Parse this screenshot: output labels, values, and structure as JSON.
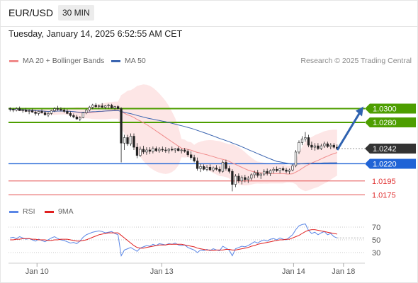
{
  "header": {
    "symbol": "EUR/USD",
    "timeframe": "30 MIN",
    "datetime": "Tuesday, January 14, 2025 6:52:55 AM CET"
  },
  "legend": {
    "ma20_label": "MA 20 + Bollinger Bands",
    "ma20_color": "#f08a8a",
    "ma50_label": "MA 50",
    "ma50_color": "#3a64b0",
    "credit": "Research © 2025 Trading Central"
  },
  "rsi_legend": {
    "rsi_label": "RSI",
    "rsi_color": "#5a86e6",
    "ma_label": "9MA",
    "ma_color": "#e02020"
  },
  "chart_data": [
    {
      "type": "candlestick",
      "title": "EUR/USD",
      "timeframe": "30 MIN",
      "ylim": [
        1.0165,
        1.0355
      ],
      "x_ticks": [
        {
          "label": "Jan 10",
          "t": 0.08
        },
        {
          "label": "Jan 13",
          "t": 0.43
        },
        {
          "label": "Jan 14",
          "t": 0.8
        },
        {
          "label": "Jan 18",
          "t": 0.94
        }
      ],
      "levels": [
        {
          "value": 1.03,
          "label": "1.0300",
          "kind": "resistance",
          "color": "#4d9e00"
        },
        {
          "value": 1.028,
          "label": "1.0280",
          "kind": "resistance",
          "color": "#4d9e00"
        },
        {
          "value": 1.0242,
          "label": "1.0242",
          "kind": "last",
          "color": "#333333"
        },
        {
          "value": 1.022,
          "label": "1.0220",
          "kind": "pivot",
          "color": "#1f63d6"
        },
        {
          "value": 1.0195,
          "label": "1.0195",
          "kind": "support",
          "color": "#e03030"
        },
        {
          "value": 1.0175,
          "label": "1.0175",
          "kind": "support",
          "color": "#e03030"
        }
      ],
      "forecast_arrow": {
        "from_value": 1.0242,
        "to_value": 1.03,
        "color": "#2f62b0"
      },
      "candles": [
        [
          1.03,
          1.0302,
          1.0296,
          1.0299
        ],
        [
          1.0299,
          1.0301,
          1.0295,
          1.0298
        ],
        [
          1.0298,
          1.0302,
          1.0296,
          1.03
        ],
        [
          1.03,
          1.0303,
          1.0298,
          1.0297
        ],
        [
          1.0297,
          1.03,
          1.0294,
          1.0298
        ],
        [
          1.0298,
          1.0301,
          1.0295,
          1.0296
        ],
        [
          1.0296,
          1.0299,
          1.0292,
          1.0297
        ],
        [
          1.0297,
          1.03,
          1.0294,
          1.0295
        ],
        [
          1.0295,
          1.0298,
          1.029,
          1.0293
        ],
        [
          1.0293,
          1.0297,
          1.029,
          1.0296
        ],
        [
          1.0296,
          1.0299,
          1.0293,
          1.0294
        ],
        [
          1.0294,
          1.0297,
          1.029,
          1.0291
        ],
        [
          1.0291,
          1.0295,
          1.0288,
          1.0293
        ],
        [
          1.0293,
          1.0298,
          1.0291,
          1.0297
        ],
        [
          1.0297,
          1.0302,
          1.0295,
          1.03
        ],
        [
          1.03,
          1.0304,
          1.0297,
          1.0299
        ],
        [
          1.0299,
          1.0302,
          1.0296,
          1.0298
        ],
        [
          1.0298,
          1.0301,
          1.0294,
          1.0296
        ],
        [
          1.0296,
          1.0299,
          1.0292,
          1.0293
        ],
        [
          1.0293,
          1.0296,
          1.0288,
          1.029
        ],
        [
          1.029,
          1.0293,
          1.0286,
          1.0288
        ],
        [
          1.0288,
          1.0291,
          1.0284,
          1.0285
        ],
        [
          1.0285,
          1.0289,
          1.0282,
          1.0287
        ],
        [
          1.0287,
          1.0295,
          1.0286,
          1.0294
        ],
        [
          1.0294,
          1.03,
          1.0292,
          1.0298
        ],
        [
          1.0298,
          1.0304,
          1.0296,
          1.0302
        ],
        [
          1.0302,
          1.0307,
          1.0299,
          1.0305
        ],
        [
          1.0305,
          1.0308,
          1.0301,
          1.0303
        ],
        [
          1.0303,
          1.0306,
          1.03,
          1.0304
        ],
        [
          1.0304,
          1.0308,
          1.0301,
          1.0302
        ],
        [
          1.0302,
          1.0305,
          1.0299,
          1.0304
        ],
        [
          1.0304,
          1.0307,
          1.03,
          1.0305
        ],
        [
          1.0305,
          1.0307,
          1.03,
          1.0301
        ],
        [
          1.0301,
          1.0304,
          1.0298,
          1.0303
        ],
        [
          1.0303,
          1.0305,
          1.0299,
          1.03
        ],
        [
          1.03,
          1.0302,
          1.0222,
          1.025
        ],
        [
          1.025,
          1.0262,
          1.024,
          1.0258
        ],
        [
          1.0258,
          1.0262,
          1.0246,
          1.0249
        ],
        [
          1.0249,
          1.0264,
          1.0246,
          1.026
        ],
        [
          1.026,
          1.0264,
          1.024,
          1.0244
        ],
        [
          1.0244,
          1.025,
          1.0228,
          1.0232
        ],
        [
          1.0232,
          1.0245,
          1.023,
          1.0241
        ],
        [
          1.0241,
          1.0246,
          1.0234,
          1.0237
        ],
        [
          1.0237,
          1.0244,
          1.0233,
          1.024
        ],
        [
          1.024,
          1.0244,
          1.0234,
          1.0238
        ],
        [
          1.0238,
          1.0245,
          1.0235,
          1.0242
        ],
        [
          1.0242,
          1.0245,
          1.0237,
          1.0239
        ],
        [
          1.0239,
          1.0244,
          1.0236,
          1.0241
        ],
        [
          1.0241,
          1.0245,
          1.0237,
          1.024
        ],
        [
          1.024,
          1.0244,
          1.0236,
          1.0239
        ],
        [
          1.0239,
          1.0243,
          1.0235,
          1.0241
        ],
        [
          1.0241,
          1.0245,
          1.0238,
          1.024
        ],
        [
          1.024,
          1.0243,
          1.0236,
          1.0242
        ],
        [
          1.0242,
          1.0245,
          1.0238,
          1.0239
        ],
        [
          1.0239,
          1.0242,
          1.0235,
          1.024
        ],
        [
          1.024,
          1.0243,
          1.0236,
          1.0238
        ],
        [
          1.0238,
          1.0241,
          1.023,
          1.0233
        ],
        [
          1.0233,
          1.0238,
          1.0226,
          1.0229
        ],
        [
          1.0229,
          1.0233,
          1.0222,
          1.0224
        ],
        [
          1.0224,
          1.0229,
          1.021,
          1.0213
        ],
        [
          1.0213,
          1.022,
          1.0208,
          1.0216
        ],
        [
          1.0216,
          1.0219,
          1.021,
          1.0212
        ],
        [
          1.0212,
          1.0218,
          1.0209,
          1.0215
        ],
        [
          1.0215,
          1.0219,
          1.021,
          1.0211
        ],
        [
          1.0211,
          1.0216,
          1.0208,
          1.0214
        ],
        [
          1.0214,
          1.0218,
          1.021,
          1.0212
        ],
        [
          1.0212,
          1.0216,
          1.0206,
          1.0209
        ],
        [
          1.0209,
          1.0225,
          1.0207,
          1.0222
        ],
        [
          1.0222,
          1.0226,
          1.021,
          1.0213
        ],
        [
          1.0213,
          1.0217,
          1.0206,
          1.0209
        ],
        [
          1.0209,
          1.0212,
          1.018,
          1.019
        ],
        [
          1.019,
          1.0205,
          1.0186,
          1.0202
        ],
        [
          1.0202,
          1.0206,
          1.0192,
          1.0195
        ],
        [
          1.0195,
          1.0203,
          1.019,
          1.02
        ],
        [
          1.02,
          1.0204,
          1.0193,
          1.0197
        ],
        [
          1.0197,
          1.0202,
          1.0192,
          1.0199
        ],
        [
          1.0199,
          1.0206,
          1.0196,
          1.0204
        ],
        [
          1.0204,
          1.021,
          1.0199,
          1.0207
        ],
        [
          1.0207,
          1.0211,
          1.02,
          1.0203
        ],
        [
          1.0203,
          1.0207,
          1.0198,
          1.0205
        ],
        [
          1.0205,
          1.0212,
          1.0202,
          1.0209
        ],
        [
          1.0209,
          1.0213,
          1.0203,
          1.0206
        ],
        [
          1.0206,
          1.0212,
          1.0202,
          1.021
        ],
        [
          1.021,
          1.0215,
          1.0206,
          1.0212
        ],
        [
          1.0212,
          1.0216,
          1.0208,
          1.021
        ],
        [
          1.021,
          1.0214,
          1.0206,
          1.0213
        ],
        [
          1.0213,
          1.0216,
          1.0209,
          1.0211
        ],
        [
          1.0211,
          1.0214,
          1.0206,
          1.0209
        ],
        [
          1.0209,
          1.0213,
          1.0205,
          1.0211
        ],
        [
          1.0211,
          1.0219,
          1.0209,
          1.0217
        ],
        [
          1.0217,
          1.024,
          1.0215,
          1.0237
        ],
        [
          1.0237,
          1.0254,
          1.0234,
          1.0251
        ],
        [
          1.0251,
          1.026,
          1.0247,
          1.0256
        ],
        [
          1.0256,
          1.0266,
          1.0252,
          1.0258
        ],
        [
          1.0258,
          1.0262,
          1.0244,
          1.0247
        ],
        [
          1.0247,
          1.0252,
          1.024,
          1.0244
        ],
        [
          1.0244,
          1.025,
          1.0239,
          1.0246
        ],
        [
          1.0246,
          1.025,
          1.024,
          1.0242
        ],
        [
          1.0242,
          1.0249,
          1.024,
          1.0246
        ],
        [
          1.0246,
          1.0252,
          1.0243,
          1.0249
        ],
        [
          1.0249,
          1.0252,
          1.0243,
          1.0245
        ],
        [
          1.0245,
          1.025,
          1.0241,
          1.0247
        ],
        [
          1.0247,
          1.025,
          1.0242,
          1.0244
        ],
        [
          1.0244,
          1.0248,
          1.024,
          1.0242
        ]
      ],
      "rsi": {
        "ticks": [
          30,
          50,
          70
        ],
        "rsi_values": [
          53,
          54,
          52,
          55,
          53,
          51,
          52,
          50,
          48,
          51,
          49,
          47,
          50,
          53,
          55,
          52,
          50,
          49,
          47,
          45,
          46,
          44,
          48,
          54,
          58,
          60,
          62,
          63,
          64,
          63,
          61,
          62,
          63,
          60,
          58,
          25,
          34,
          36,
          38,
          35,
          32,
          37,
          39,
          41,
          40,
          43,
          41,
          44,
          43,
          42,
          44,
          43,
          45,
          42,
          41,
          42,
          38,
          36,
          34,
          30,
          34,
          33,
          35,
          33,
          36,
          34,
          33,
          40,
          37,
          34,
          25,
          36,
          38,
          40,
          39,
          41,
          44,
          47,
          45,
          48,
          50,
          48,
          51,
          52,
          50,
          53,
          51,
          50,
          54,
          58,
          66,
          72,
          74,
          75,
          65,
          60,
          62,
          58,
          61,
          63,
          58,
          60,
          55,
          53
        ],
        "ma_values": [
          50,
          50,
          51,
          51,
          52,
          52,
          52,
          51,
          51,
          50,
          50,
          50,
          49,
          49,
          50,
          50,
          51,
          51,
          51,
          50,
          49,
          48,
          48,
          49,
          50,
          52,
          54,
          56,
          58,
          59,
          60,
          61,
          61,
          61,
          61,
          57,
          53,
          49,
          45,
          41,
          38,
          37,
          37,
          38,
          39,
          40,
          41,
          42,
          42,
          42,
          43,
          43,
          43,
          43,
          43,
          42,
          41,
          40,
          39,
          37,
          36,
          35,
          34,
          34,
          33,
          34,
          34,
          34,
          35,
          35,
          34,
          34,
          35,
          36,
          37,
          38,
          40,
          41,
          43,
          44,
          45,
          46,
          47,
          48,
          49,
          50,
          50,
          51,
          51,
          53,
          55,
          57,
          60,
          63,
          65,
          66,
          66,
          65,
          64,
          63,
          62,
          61,
          60,
          59
        ]
      }
    }
  ]
}
